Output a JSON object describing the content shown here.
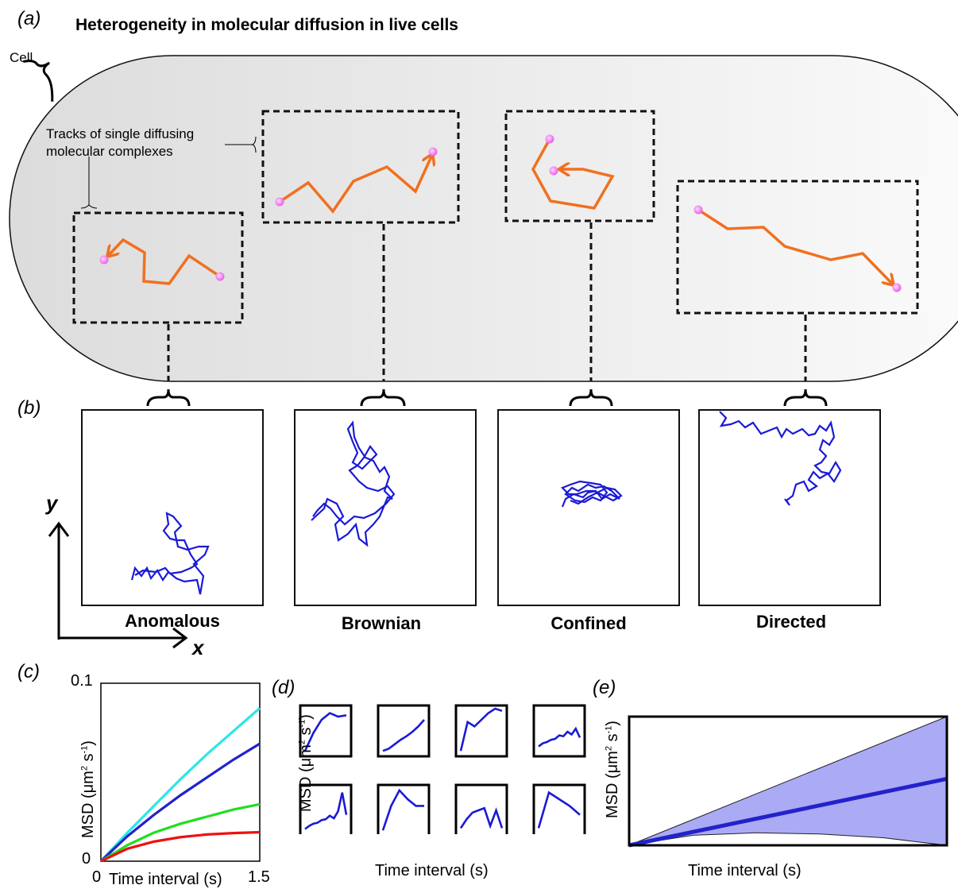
{
  "panel_labels": {
    "a": "(a)",
    "b": "(b)",
    "c": "(c)",
    "d": "(d)",
    "e": "(e)"
  },
  "title": "Heterogeneity in molecular diffusion in live cells",
  "cell_label": "Cell",
  "tracks_label_line1": "Tracks of single diffusing",
  "tracks_label_line2": "molecular  complexes",
  "trajectory_labels": [
    "Anomalous",
    "Brownian",
    "Confined",
    "Directed"
  ],
  "axes_b": {
    "y": "y",
    "x": "x"
  },
  "panel_c": {
    "ylabel_main": "MSD (μm",
    "ylabel_exp1": "2",
    "ylabel_mid": " s",
    "ylabel_exp2": "-1",
    "ylabel_end": ")",
    "xlabel": "Time interval (s)",
    "ytick_top": "0.1",
    "ytick_bottom": "0",
    "xtick_left": "0",
    "xtick_right": "1.5"
  },
  "panel_d": {
    "xlabel": "Time interval (s)"
  },
  "panel_e": {
    "xlabel": "Time interval (s)"
  },
  "colors": {
    "track": "#f07020",
    "bead": "#f080f0",
    "trajectory": "#1a1ad6",
    "cyan": "#2ee6e6",
    "blue": "#2222cc",
    "green": "#22dd22",
    "red": "#ee1111",
    "band": "#aaaaf5"
  },
  "chart_data": [
    {
      "type": "line",
      "panel": "c",
      "xlabel": "Time interval (s)",
      "ylabel": "MSD (μm² s⁻¹)",
      "xlim": [
        0,
        1.5
      ],
      "ylim": [
        0,
        0.1
      ],
      "series": [
        {
          "color": "cyan",
          "x": [
            0,
            0.25,
            0.5,
            0.75,
            1.0,
            1.25,
            1.5
          ],
          "values": [
            0,
            0.016,
            0.031,
            0.046,
            0.06,
            0.073,
            0.086
          ]
        },
        {
          "color": "blue",
          "x": [
            0,
            0.25,
            0.5,
            0.75,
            1.0,
            1.25,
            1.5
          ],
          "values": [
            0,
            0.014,
            0.026,
            0.037,
            0.047,
            0.057,
            0.066
          ]
        },
        {
          "color": "green",
          "x": [
            0,
            0.25,
            0.5,
            0.75,
            1.0,
            1.25,
            1.5
          ],
          "values": [
            0,
            0.009,
            0.016,
            0.021,
            0.025,
            0.029,
            0.032
          ]
        },
        {
          "color": "red",
          "x": [
            0,
            0.25,
            0.5,
            0.75,
            1.0,
            1.25,
            1.5
          ],
          "values": [
            0,
            0.007,
            0.011,
            0.0135,
            0.015,
            0.0158,
            0.0163
          ]
        }
      ]
    },
    {
      "type": "line",
      "panel": "d",
      "xlabel": "Time interval (s)",
      "ylabel": "MSD (μm² s⁻¹)",
      "series": [
        {
          "values": [
            0.05,
            0.45,
            0.75,
            0.9,
            0.82,
            0.85
          ]
        },
        {
          "values": [
            0.05,
            0.1,
            0.2,
            0.3,
            0.38,
            0.48,
            0.6,
            0.75
          ]
        },
        {
          "values": [
            0.05,
            0.7,
            0.6,
            0.75,
            0.9,
            1.0,
            0.95
          ]
        },
        {
          "values": [
            0.15,
            0.22,
            0.25,
            0.3,
            0.32,
            0.4,
            0.38,
            0.48,
            0.42,
            0.55,
            0.35
          ]
        },
        {
          "values": [
            0.08,
            0.15,
            0.2,
            0.22,
            0.28,
            0.3,
            0.38,
            0.32,
            0.48,
            0.9,
            0.4
          ]
        },
        {
          "values": [
            0.05,
            0.6,
            0.95,
            0.75,
            0.6,
            0.6
          ]
        },
        {
          "values": [
            0.1,
            0.3,
            0.45,
            0.5,
            0.55,
            0.15,
            0.5,
            0.1
          ]
        },
        {
          "values": [
            0.1,
            0.9,
            0.75,
            0.6,
            0.4
          ]
        }
      ]
    },
    {
      "type": "area",
      "panel": "e",
      "xlabel": "Time interval (s)",
      "ylabel": "MSD (μm² s⁻¹)",
      "xlim": [
        0,
        1
      ],
      "ylim": [
        0,
        1
      ],
      "series": [
        {
          "name": "mean",
          "x": [
            0,
            1
          ],
          "values": [
            0,
            0.53
          ]
        },
        {
          "name": "upper",
          "x": [
            0,
            1
          ],
          "values": [
            0,
            1.05
          ]
        },
        {
          "name": "lower",
          "x": [
            0,
            0.2,
            0.4,
            0.6,
            0.8,
            1.0
          ],
          "values": [
            0,
            0.08,
            0.1,
            0.09,
            0.06,
            0.0
          ]
        }
      ]
    }
  ]
}
